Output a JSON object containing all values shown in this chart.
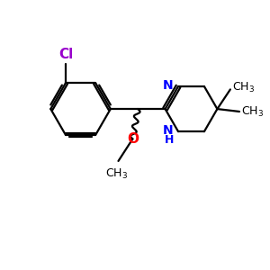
{
  "background_color": "#ffffff",
  "figsize": [
    3.0,
    3.0
  ],
  "dpi": 100,
  "bond_color": "#000000",
  "N_color": "#0000ff",
  "O_color": "#ff0000",
  "Cl_color": "#9900cc",
  "line_width": 1.6,
  "font_size": 10,
  "font_size_small": 9,
  "xlim": [
    0,
    10
  ],
  "ylim": [
    0,
    10
  ]
}
